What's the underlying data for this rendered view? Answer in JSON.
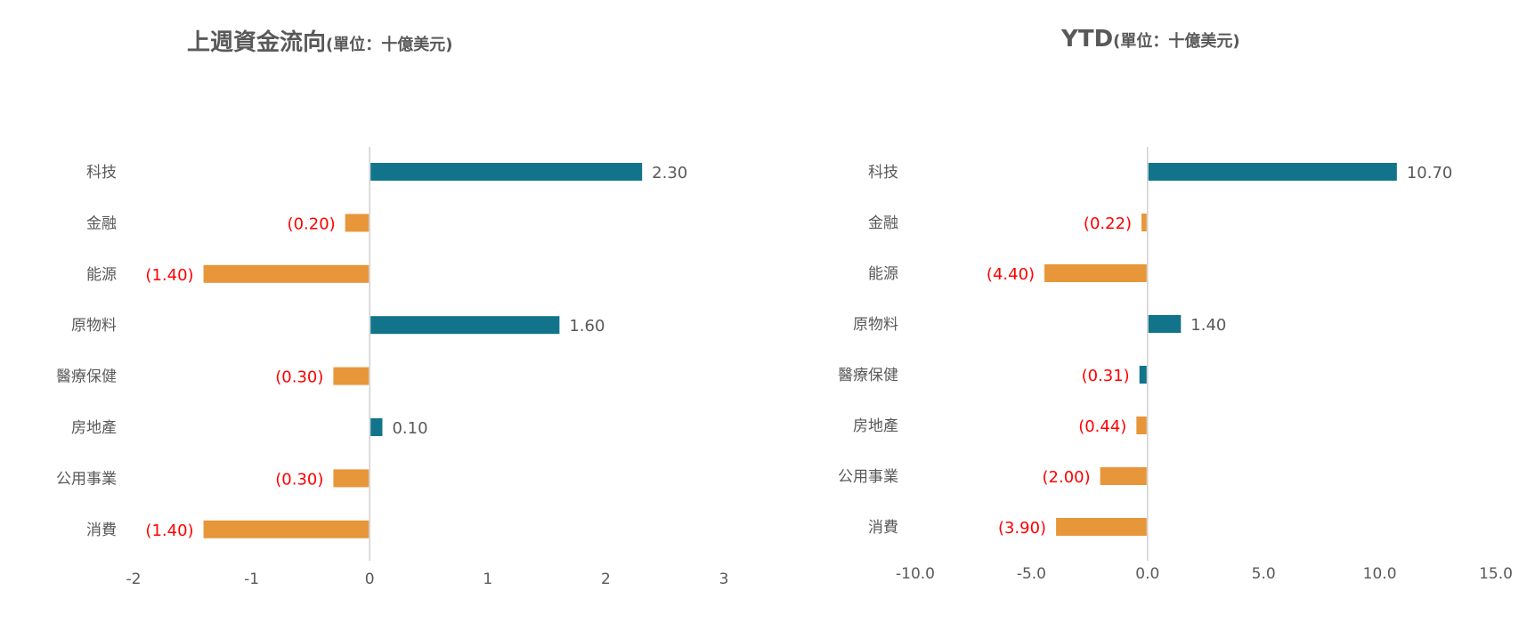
{
  "chart_data": [
    {
      "type": "bar",
      "orientation": "horizontal",
      "title": "上週資金流向",
      "subtitle": "(單位：十億美元)",
      "categories": [
        "科技",
        "金融",
        "能源",
        "原物料",
        "醫療保健",
        "房地產",
        "公用事業",
        "消費"
      ],
      "values": [
        2.3,
        -0.2,
        -1.4,
        1.6,
        -0.3,
        0.1,
        -0.3,
        -1.4
      ],
      "value_labels": [
        "2.30",
        "(0.20)",
        "(1.40)",
        "1.60",
        "(0.30)",
        "0.10",
        "(0.30)",
        "(1.40)"
      ],
      "xlim": [
        -2,
        3
      ],
      "xticks": [
        -2,
        -1,
        0,
        1,
        2,
        3
      ],
      "xtick_labels": [
        "-2",
        "-1",
        "0",
        "1",
        "2",
        "3"
      ],
      "grid": false,
      "legend": "none",
      "bar_colors": [
        "#11748A",
        "#E8963A",
        "#E8963A",
        "#11748A",
        "#E8963A",
        "#11748A",
        "#E8963A",
        "#E8963A"
      ],
      "label_colors": [
        "#595959",
        "#FF0000",
        "#FF0000",
        "#595959",
        "#FF0000",
        "#595959",
        "#FF0000",
        "#FF0000"
      ]
    },
    {
      "type": "bar",
      "orientation": "horizontal",
      "title": "YTD",
      "subtitle": "(單位：十億美元)",
      "categories": [
        "科技",
        "金融",
        "能源",
        "原物料",
        "醫療保健",
        "房地產",
        "公用事業",
        "消費"
      ],
      "values": [
        10.7,
        -0.22,
        -4.4,
        1.4,
        -0.31,
        -0.44,
        -2.0,
        -3.9
      ],
      "value_labels": [
        "10.70",
        "(0.22)",
        "(4.40)",
        "1.40",
        "(0.31)",
        "(0.44)",
        "(2.00)",
        "(3.90)"
      ],
      "xlim": [
        -10,
        15
      ],
      "xticks": [
        -10,
        -5,
        0,
        5,
        10,
        15
      ],
      "xtick_labels": [
        "-10.0",
        "-5.0",
        "0.0",
        "5.0",
        "10.0",
        "15.0"
      ],
      "grid": false,
      "legend": "none",
      "bar_colors": [
        "#11748A",
        "#E8963A",
        "#E8963A",
        "#11748A",
        "#11748A",
        "#E8963A",
        "#E8963A",
        "#E8963A"
      ],
      "label_colors": [
        "#595959",
        "#FF0000",
        "#FF0000",
        "#595959",
        "#FF0000",
        "#FF0000",
        "#FF0000",
        "#FF0000"
      ]
    }
  ],
  "colors": {
    "axis_line": "#D0D0D0",
    "text": "#595959",
    "negative_label": "#FF0000",
    "teal": "#11748A",
    "orange": "#E8963A"
  }
}
